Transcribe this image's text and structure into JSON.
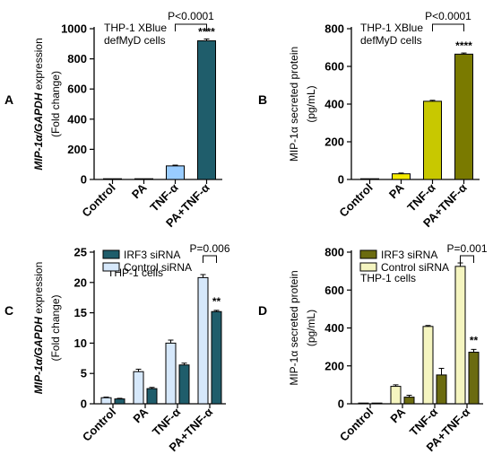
{
  "colors": {
    "axis": "#000000",
    "a_control": "#ffffff",
    "a_pa": "#f0f0f0",
    "a_tnf": "#99ccff",
    "a_patnf": "#1f5d6b",
    "b_control": "#ffffff",
    "b_pa": "#f5ea00",
    "b_tnf": "#c8c800",
    "b_patnf": "#7a7a00",
    "c_irf3": "#1f5d6b",
    "c_control": "#d6e8fb",
    "d_irf3": "#6b6b10",
    "d_control": "#f5f5c0"
  },
  "chart_data": [
    {
      "panel": "A",
      "type": "bar",
      "ylabel_italic": "MIP-1α/GAPDH",
      "ylabel_rest": " expression",
      "ylabel2": "(Fold change)",
      "annotation": [
        "THP-1 XBlue",
        "defMyD cells"
      ],
      "categories": [
        "Control",
        "PA",
        "TNF-α",
        "PA+TNF-α"
      ],
      "values": [
        1,
        2,
        90,
        920
      ],
      "errors": [
        1,
        1,
        5,
        12
      ],
      "ylim": [
        0,
        1000
      ],
      "yticks": [
        "0",
        "200",
        "400",
        "600",
        "800",
        "1000"
      ],
      "yticks_v": [
        0,
        200,
        400,
        600,
        800,
        1000
      ],
      "bar_colors": [
        "a_control",
        "a_pa",
        "a_tnf",
        "a_patnf"
      ],
      "pvalue": "P<0.0001",
      "pvalue_pair": [
        2,
        3
      ],
      "stars": "****",
      "stars_index": 3
    },
    {
      "panel": "B",
      "type": "bar",
      "ylabel": "MIP-1α secreted protein",
      "ylabel2": "(pg/mL)",
      "annotation": [
        "THP-1 XBlue",
        "defMyD cells"
      ],
      "categories": [
        "Control",
        "PA",
        "TNF-α",
        "PA+TNF-α"
      ],
      "values": [
        0,
        30,
        415,
        665
      ],
      "errors": [
        0,
        4,
        5,
        6
      ],
      "ylim": [
        0,
        800
      ],
      "yticks": [
        "0",
        "200",
        "400",
        "600",
        "800"
      ],
      "yticks_v": [
        0,
        200,
        400,
        600,
        800
      ],
      "bar_colors": [
        "b_control",
        "b_pa",
        "b_tnf",
        "b_patnf"
      ],
      "pvalue": "P<0.0001",
      "pvalue_pair": [
        2,
        3
      ],
      "stars": "****",
      "stars_index": 3
    },
    {
      "panel": "C",
      "type": "bar",
      "ylabel_italic": "MIP-1α/GAPDH",
      "ylabel_rest": " expression",
      "ylabel2": "(Fold change)",
      "annotation": [
        "THP-1 cells"
      ],
      "categories": [
        "Control",
        "PA",
        "TNF-α",
        "PA+TNF-α"
      ],
      "series": [
        {
          "name": "Control siRNA",
          "values": [
            1,
            5.3,
            10,
            20.8
          ],
          "errors": [
            0.1,
            0.4,
            0.5,
            0.5
          ],
          "color": "c_control"
        },
        {
          "name": "IRF3 siRNA",
          "values": [
            0.8,
            2.5,
            6.4,
            15.2
          ],
          "errors": [
            0.1,
            0.2,
            0.3,
            0.2
          ],
          "color": "c_irf3"
        }
      ],
      "legend_order": [
        1,
        0
      ],
      "ylim": [
        0,
        25
      ],
      "yticks": [
        "0",
        "5",
        "10",
        "15",
        "20",
        "25"
      ],
      "yticks_v": [
        0,
        5,
        10,
        15,
        20,
        25
      ],
      "pvalue": "P=0.006",
      "stars": "**",
      "stars_index": 3
    },
    {
      "panel": "D",
      "type": "bar",
      "ylabel": "MIP-1α secreted protein",
      "ylabel2": "(pg/mL)",
      "annotation": [
        "THP-1 cells"
      ],
      "categories": [
        "Control",
        "PA",
        "TNF-α",
        "PA+TNF-α"
      ],
      "series": [
        {
          "name": "Control siRNA",
          "values": [
            0,
            92,
            408,
            725
          ],
          "errors": [
            0,
            8,
            5,
            18
          ],
          "color": "d_control"
        },
        {
          "name": "IRF3 siRNA",
          "values": [
            0,
            35,
            152,
            272
          ],
          "errors": [
            0,
            10,
            35,
            15
          ],
          "color": "d_irf3"
        }
      ],
      "legend_order": [
        1,
        0
      ],
      "ylim": [
        0,
        800
      ],
      "yticks": [
        "0",
        "200",
        "400",
        "600",
        "800"
      ],
      "yticks_v": [
        0,
        200,
        400,
        600,
        800
      ],
      "pvalue": "P=0.001",
      "stars": "**",
      "stars_index": 3
    }
  ]
}
